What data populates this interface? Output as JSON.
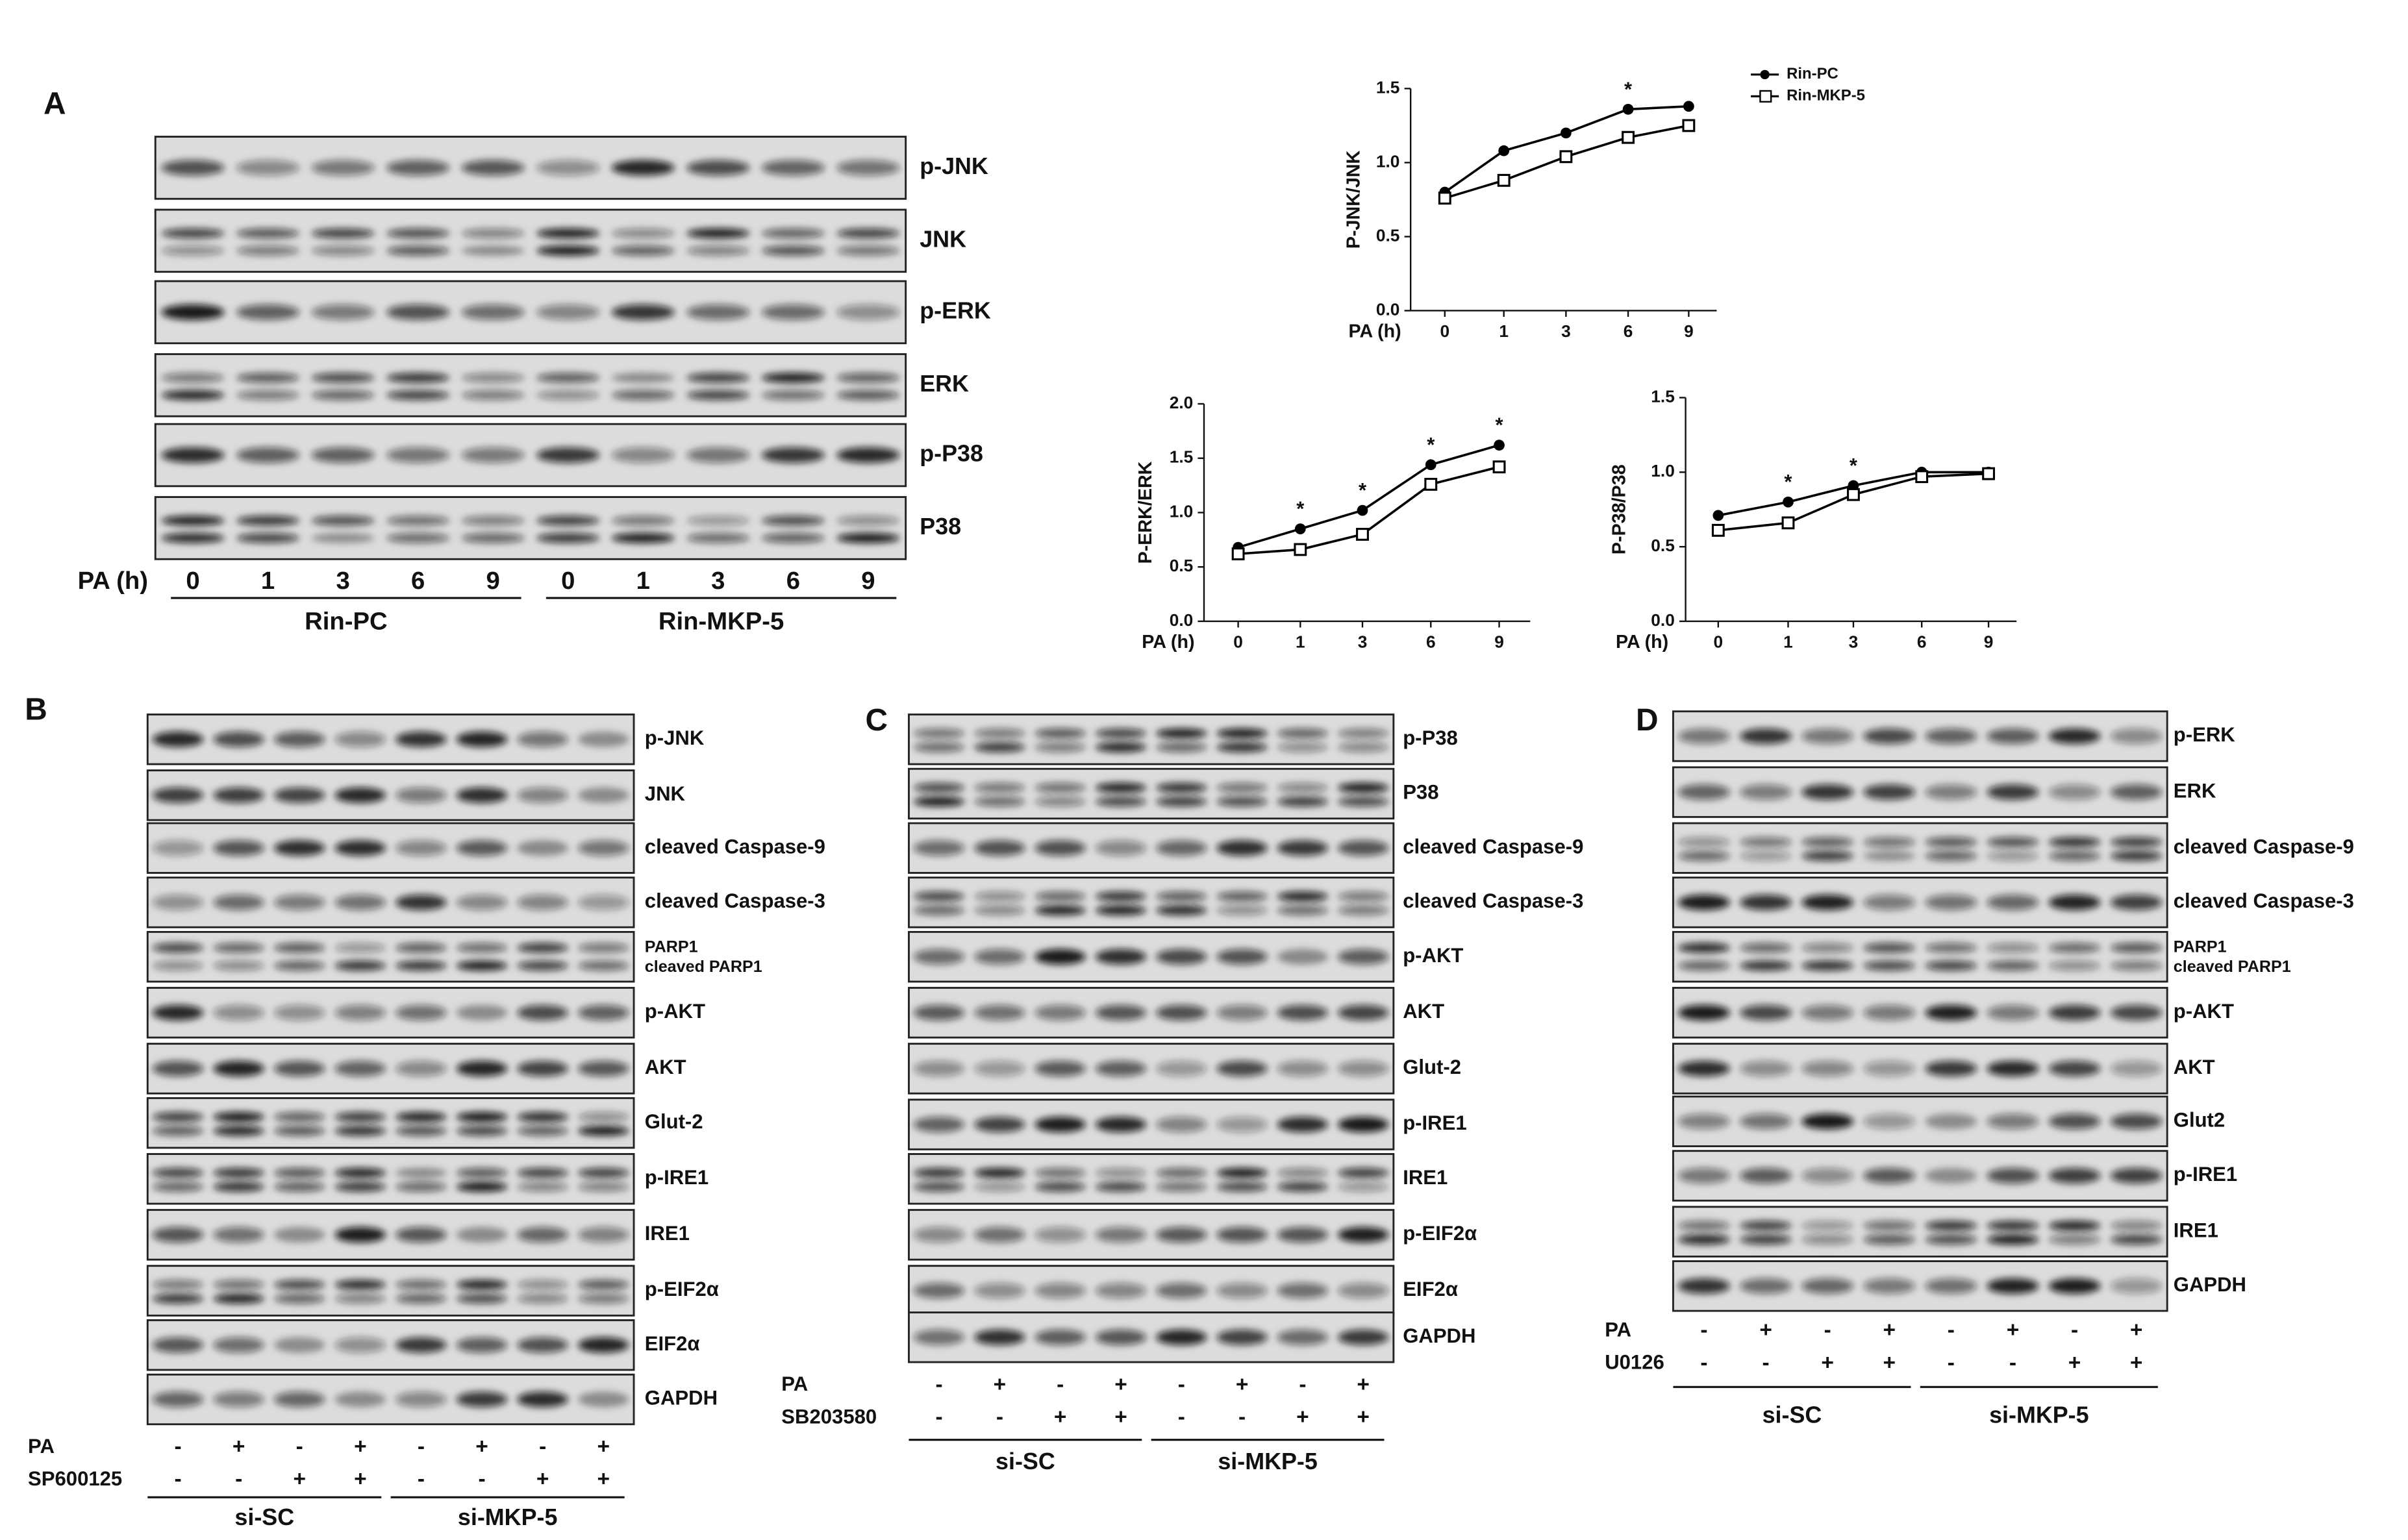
{
  "chart_data": [
    {
      "type": "line",
      "ylabel": "P-JNK/JNK",
      "xlabel": "PA (h)",
      "categories": [
        "0",
        "1",
        "3",
        "6",
        "9"
      ],
      "ylim": [
        0,
        1.5
      ],
      "yticks": [
        {
          "value": 0,
          "label": "0.0"
        },
        0.5,
        {
          "value": 1,
          "label": "1.0"
        },
        1.5
      ],
      "series": [
        {
          "name": "Rin-PC",
          "color": "#000000",
          "marker": "circle",
          "values": [
            0.8,
            1.08,
            1.2,
            1.36,
            1.38
          ]
        },
        {
          "name": "Rin-MKP-5",
          "color": "#000000",
          "marker": "square",
          "values": [
            0.76,
            0.88,
            1.04,
            1.17,
            1.25
          ]
        }
      ],
      "star_label": "*",
      "significant": [
        false,
        false,
        false,
        true,
        false
      ],
      "legend": "top-right"
    },
    {
      "type": "line",
      "ylabel": "P-ERK/ERK",
      "xlabel": "PA (h)",
      "categories": [
        "0",
        "1",
        "3",
        "6",
        "9"
      ],
      "ylim": [
        0,
        2
      ],
      "yticks": [
        {
          "value": 0,
          "label": "0.0"
        },
        0.5,
        {
          "value": 1,
          "label": "1.0"
        },
        1.5,
        {
          "value": 2,
          "label": "2.0"
        }
      ],
      "series": [
        {
          "color": "#000000",
          "marker": "circle",
          "values": [
            0.68,
            0.85,
            1.02,
            1.44,
            1.62
          ]
        },
        {
          "color": "#000000",
          "marker": "square",
          "values": [
            0.62,
            0.66,
            0.8,
            1.26,
            1.42
          ]
        }
      ],
      "star_label": "*",
      "significant": [
        false,
        true,
        true,
        true,
        true
      ]
    },
    {
      "type": "line",
      "ylabel": "P-P38/P38",
      "xlabel": "PA (h)",
      "categories": [
        "0",
        "1",
        "3",
        "6",
        "9"
      ],
      "ylim": [
        0,
        1.5
      ],
      "yticks": [
        {
          "value": 0,
          "label": "0.0"
        },
        0.5,
        {
          "value": 1,
          "label": "1.0"
        },
        1.5
      ],
      "series": [
        {
          "color": "#000000",
          "marker": "circle",
          "values": [
            0.71,
            0.8,
            0.91,
            1.0,
            1.0
          ]
        },
        {
          "color": "#000000",
          "marker": "square",
          "values": [
            0.61,
            0.66,
            0.85,
            0.97,
            0.99
          ]
        }
      ],
      "star_label": "*",
      "significant": [
        false,
        true,
        true,
        false,
        false
      ]
    }
  ],
  "blots": {
    "A": {
      "label": "A",
      "rows": [
        [
          "p-JNK"
        ],
        [
          "JNK"
        ],
        [
          "p-ERK"
        ],
        [
          "ERK"
        ],
        [
          "p-P38"
        ],
        [
          "P38"
        ]
      ],
      "lane_label": "PA (h)",
      "lanes": [
        "0",
        "1",
        "3",
        "6",
        "9",
        "0",
        "1",
        "3",
        "6",
        "9"
      ],
      "groups": [
        "Rin-PC",
        "Rin-MKP-5"
      ]
    },
    "B": {
      "label": "B",
      "rows": [
        [
          "p-JNK"
        ],
        [
          "JNK"
        ],
        [
          "cleaved Caspase-9"
        ],
        [
          "cleaved Caspase-3"
        ],
        [
          "PARP1",
          "cleaved PARP1"
        ],
        [
          "p-AKT"
        ],
        [
          "AKT"
        ],
        [
          "Glut-2"
        ],
        [
          "p-IRE1"
        ],
        [
          "IRE1"
        ],
        [
          "p-EIF2α"
        ],
        [
          "EIF2α"
        ],
        [
          "GAPDH"
        ]
      ],
      "treatments": [
        {
          "name": "PA",
          "signs": [
            "-",
            "+",
            "-",
            "+",
            "-",
            "+",
            "-",
            "+"
          ]
        },
        {
          "name": "SP600125",
          "signs": [
            "-",
            "-",
            "+",
            "+",
            "-",
            "-",
            "+",
            "+"
          ]
        }
      ],
      "groups": [
        "si-SC",
        "si-MKP-5"
      ]
    },
    "C": {
      "label": "C",
      "rows": [
        [
          "p-P38"
        ],
        [
          "P38"
        ],
        [
          "cleaved Caspase-9"
        ],
        [
          "cleaved Caspase-3"
        ],
        [
          "p-AKT"
        ],
        [
          "AKT"
        ],
        [
          "Glut-2"
        ],
        [
          "p-IRE1"
        ],
        [
          "IRE1"
        ],
        [
          "p-EIF2α"
        ],
        [
          "EIF2α"
        ],
        [
          "GAPDH"
        ]
      ],
      "treatments": [
        {
          "name": "PA",
          "signs": [
            "-",
            "+",
            "-",
            "+",
            "-",
            "+",
            "-",
            "+"
          ]
        },
        {
          "name": "SB203580",
          "signs": [
            "-",
            "-",
            "+",
            "+",
            "-",
            "-",
            "+",
            "+"
          ]
        }
      ],
      "groups": [
        "si-SC",
        "si-MKP-5"
      ]
    },
    "D": {
      "label": "D",
      "rows": [
        [
          "p-ERK"
        ],
        [
          "ERK"
        ],
        [
          "cleaved Caspase-9"
        ],
        [
          "cleaved Caspase-3"
        ],
        [
          "PARP1",
          "cleaved PARP1"
        ],
        [
          "p-AKT"
        ],
        [
          "AKT"
        ],
        [
          "Glut2"
        ],
        [
          "p-IRE1"
        ],
        [
          "IRE1"
        ],
        [
          "GAPDH"
        ]
      ],
      "treatments": [
        {
          "name": "PA",
          "signs": [
            "-",
            "+",
            "-",
            "+",
            "-",
            "+",
            "-",
            "+"
          ]
        },
        {
          "name": "U0126",
          "signs": [
            "-",
            "-",
            "+",
            "+",
            "-",
            "-",
            "+",
            "+"
          ]
        }
      ],
      "groups": [
        "si-SC",
        "si-MKP-5"
      ]
    }
  }
}
